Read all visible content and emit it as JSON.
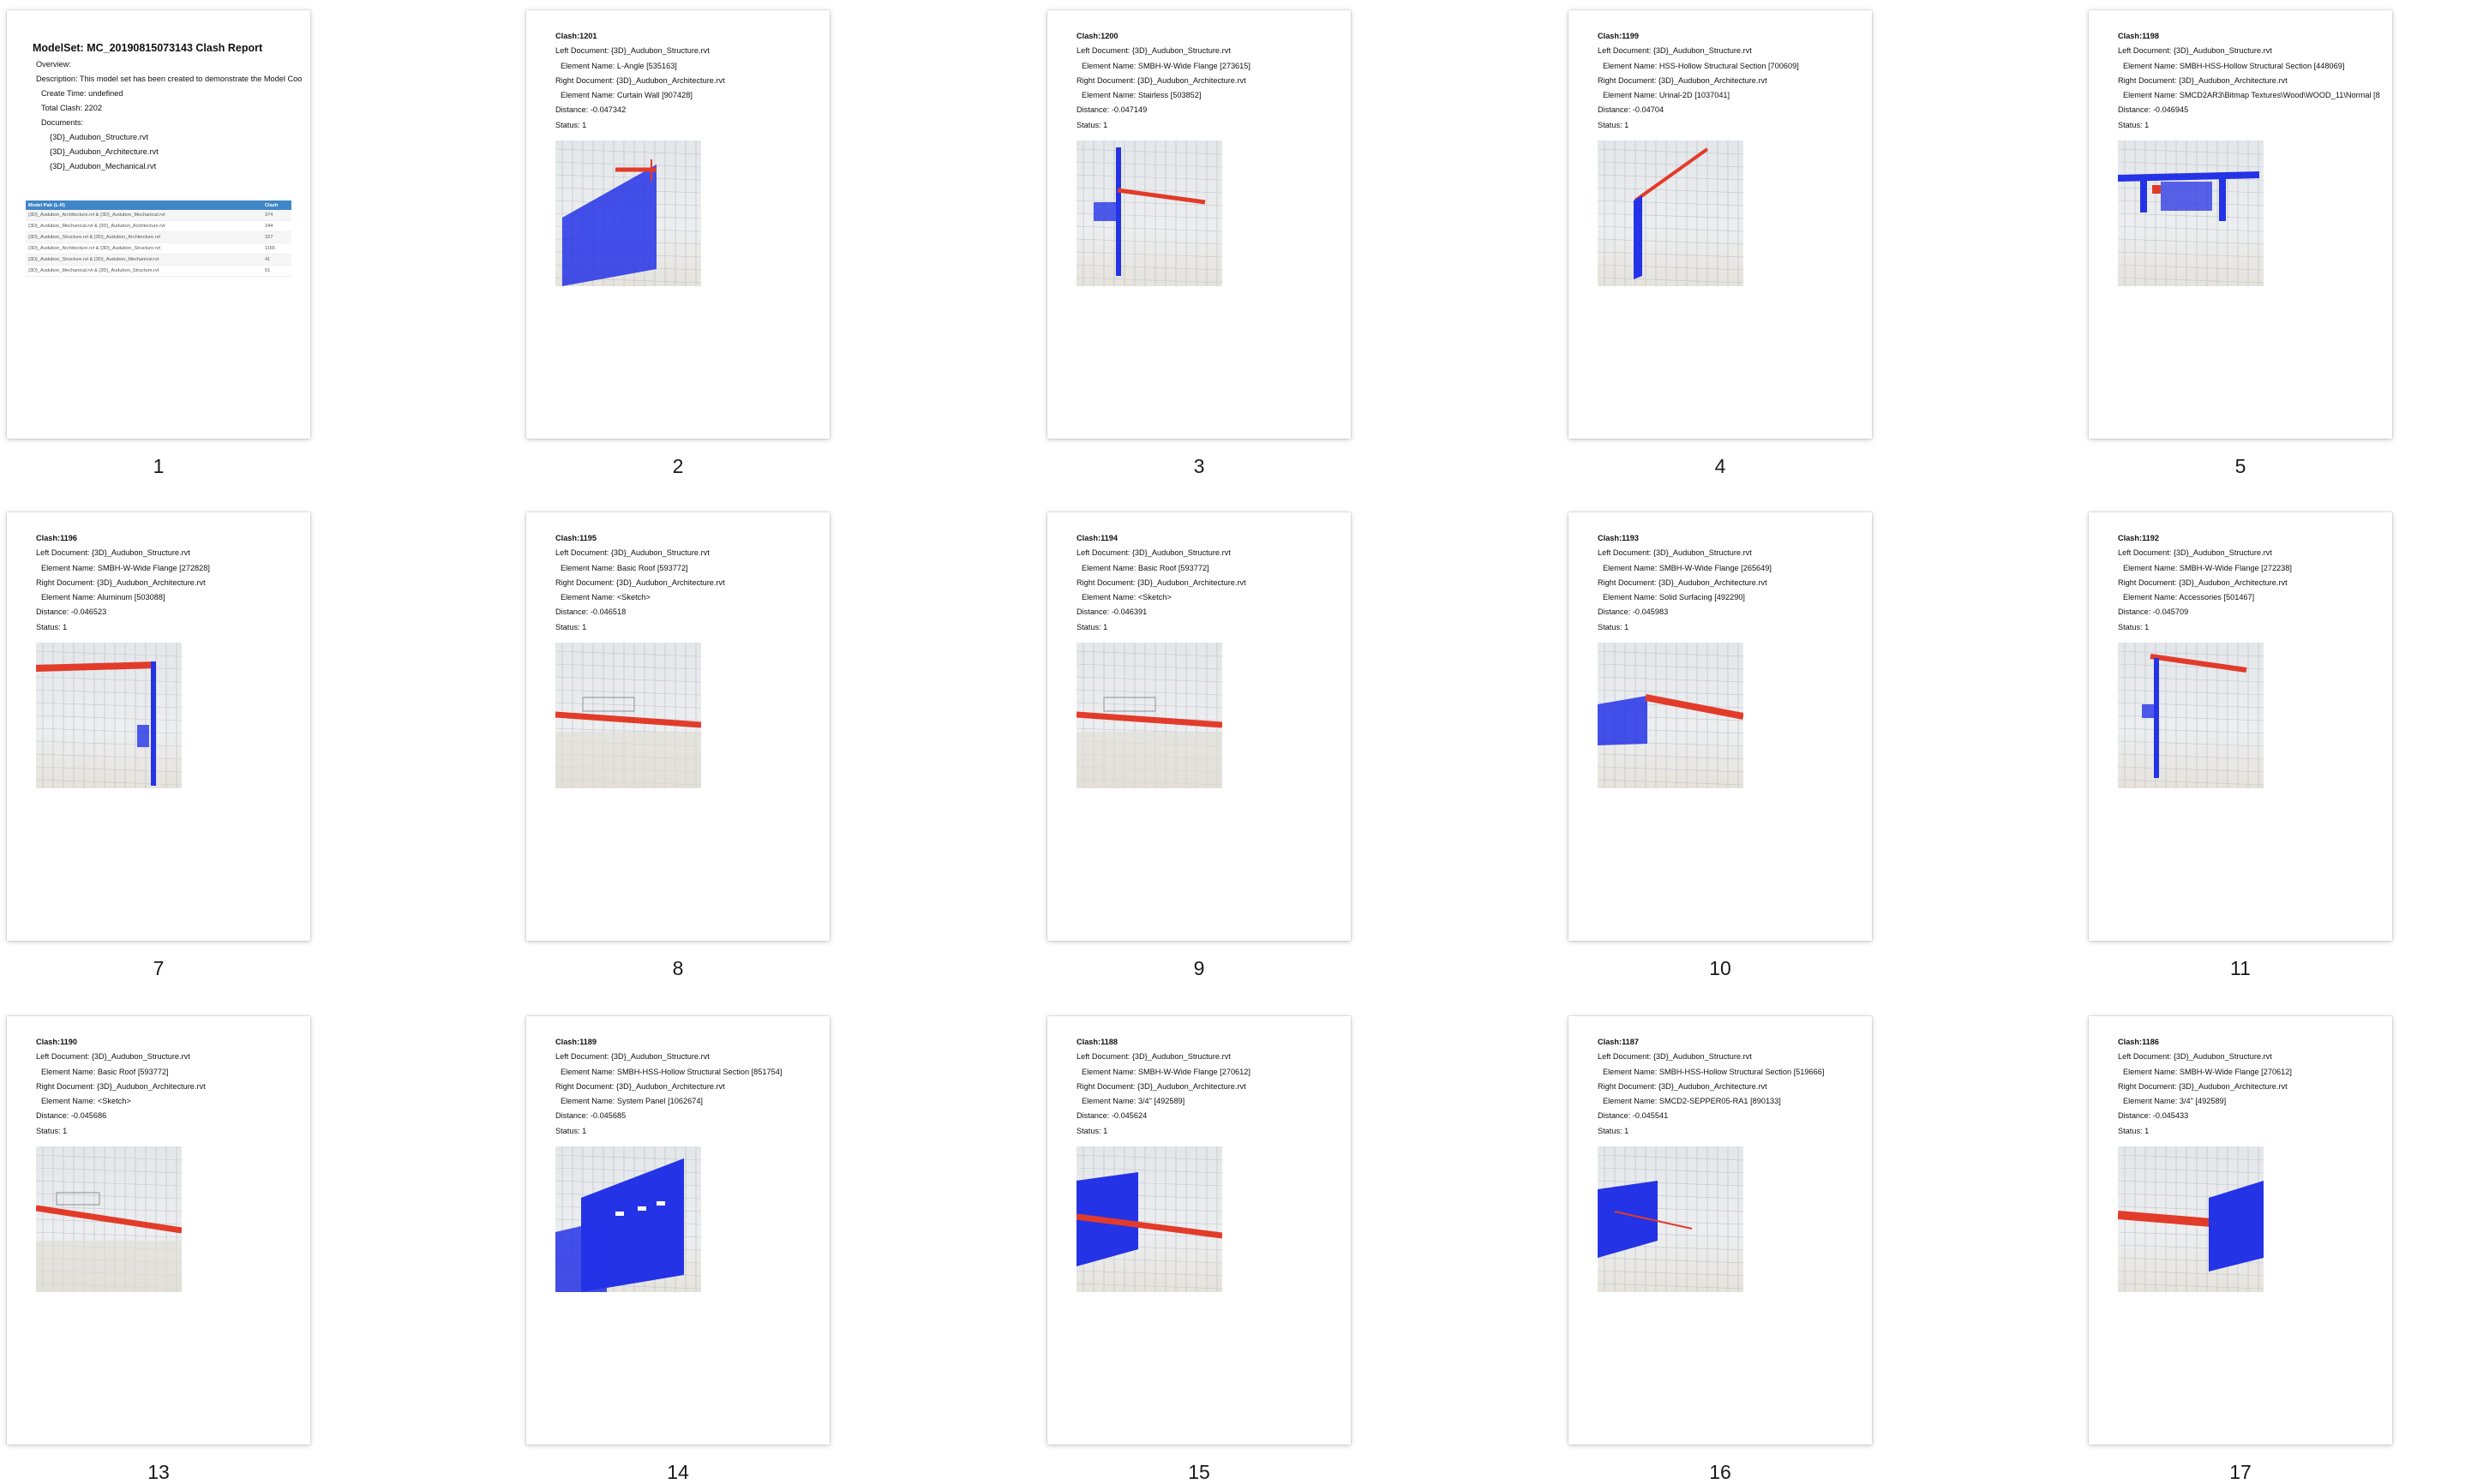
{
  "pages": [
    {
      "num": "1",
      "kind": "cover",
      "cover": {
        "title": "ModelSet: MC_20190815073143 Clash Report",
        "overview": "Overview:",
        "description": "Description: This model set has been created to demonstrate the Model Coo",
        "create_time": "Create Time: undefined",
        "total_clash": "Total Clash: 2202",
        "documents_label": "Documents:",
        "documents": [
          "{3D}_Audubon_Structure.rvt",
          "{3D}_Audubon_Architecture.rvt",
          "{3D}_Audubon_Mechanical.rvt"
        ],
        "table_headers": [
          "Model Pair (L-R)",
          "Clash"
        ],
        "rows": [
          [
            "{3D}_Audubon_Architecture.rvt & {3D}_Audubon_Mechanical.rvt",
            "374"
          ],
          [
            "{3D}_Audubon_Mechanical.rvt & {3D}_Audubon_Architecture.rvt",
            "244"
          ],
          [
            "{3D}_Audubon_Structure.rvt & {3D}_Audubon_Architecture.rvt",
            "327"
          ],
          [
            "{3D}_Audubon_Architecture.rvt & {3D}_Audubon_Structure.rvt",
            "1165"
          ],
          [
            "{3D}_Audubon_Structure.rvt & {3D}_Audubon_Mechanical.rvt",
            "41"
          ],
          [
            "{3D}_Audubon_Mechanical.rvt & {3D}_Audubon_Structure.rvt",
            "51"
          ]
        ]
      }
    },
    {
      "num": "2",
      "kind": "clash",
      "scene": "wall-left",
      "lines": [
        "Clash:1201",
        "Left Document: {3D}_Audubon_Structure.rvt",
        "Element Name: L-Angle [535163]",
        "Right Document: {3D}_Audubon_Architecture.rvt",
        "Element Name: Curtain Wall [907428]",
        "Distance: -0.047342",
        "Status: 1"
      ]
    },
    {
      "num": "3",
      "kind": "clash",
      "scene": "column-beam",
      "lines": [
        "Clash:1200",
        "Left Document: {3D}_Audubon_Structure.rvt",
        "Element Name: SMBH-W-Wide Flange [273615]",
        "Right Document: {3D}_Audubon_Architecture.rvt",
        "Element Name: Stairless [503852]",
        "Distance: -0.047149",
        "Status: 1"
      ]
    },
    {
      "num": "4",
      "kind": "clash",
      "scene": "column-diagonal",
      "lines": [
        "Clash:1199",
        "Left Document: {3D}_Audubon_Structure.rvt",
        "Element Name: HSS-Hollow Structural Section [700609]",
        "Right Document: {3D}_Audubon_Architecture.rvt",
        "Element Name: Urinal-2D [1037041]",
        "Distance: -0.04704",
        "Status: 1"
      ]
    },
    {
      "num": "5",
      "kind": "clash",
      "scene": "frame",
      "lines": [
        "Clash:1198",
        "Left Document: {3D}_Audubon_Structure.rvt",
        "Element Name: SMBH-HSS-Hollow Structural Section [448069]",
        "Right Document: {3D}_Audubon_Architecture.rvt",
        "Element Name: SMCD2AR3\\Bitmap Textures\\Wood\\WOOD_11\\Normal [8",
        "Distance: -0.046945",
        "Status: 1"
      ]
    },
    {
      "num": "7",
      "kind": "clash",
      "scene": "beam-column-right",
      "lines": [
        "Clash:1196",
        "Left Document: {3D}_Audubon_Structure.rvt",
        "Element Name: SMBH-W-Wide Flange [272828]",
        "Right Document: {3D}_Audubon_Architecture.rvt",
        "Element Name: Aluminum [503088]",
        "Distance: -0.046523",
        "Status: 1"
      ]
    },
    {
      "num": "8",
      "kind": "clash",
      "scene": "roof-line",
      "lines": [
        "Clash:1195",
        "Left Document: {3D}_Audubon_Structure.rvt",
        "Element Name: Basic Roof [593772]",
        "Right Document: {3D}_Audubon_Architecture.rvt",
        "Element Name: <Sketch>",
        "Distance: -0.046518",
        "Status: 1"
      ]
    },
    {
      "num": "9",
      "kind": "clash",
      "scene": "roof-line",
      "lines": [
        "Clash:1194",
        "Left Document: {3D}_Audubon_Structure.rvt",
        "Element Name: Basic Roof [593772]",
        "Right Document: {3D}_Audubon_Architecture.rvt",
        "Element Name: <Sketch>",
        "Distance: -0.046391",
        "Status: 1"
      ]
    },
    {
      "num": "10",
      "kind": "clash",
      "scene": "wall-beam",
      "lines": [
        "Clash:1193",
        "Left Document: {3D}_Audubon_Structure.rvt",
        "Element Name: SMBH-W-Wide Flange [265649]",
        "Right Document: {3D}_Audubon_Architecture.rvt",
        "Element Name: Solid Surfacing [492290]",
        "Distance: -0.045983",
        "Status: 1"
      ]
    },
    {
      "num": "11",
      "kind": "clash",
      "scene": "column-beam2",
      "lines": [
        "Clash:1192",
        "Left Document: {3D}_Audubon_Structure.rvt",
        "Element Name: SMBH-W-Wide Flange [272238]",
        "Right Document: {3D}_Audubon_Architecture.rvt",
        "Element Name: Accessories [501467]",
        "Distance: -0.045709",
        "Status: 1"
      ]
    },
    {
      "num": "13",
      "kind": "clash",
      "scene": "roof-line2",
      "lines": [
        "Clash:1190",
        "Left Document: {3D}_Audubon_Structure.rvt",
        "Element Name: Basic Roof [593772]",
        "Right Document: {3D}_Audubon_Architecture.rvt",
        "Element Name: <Sketch>",
        "Distance: -0.045686",
        "Status: 1"
      ]
    },
    {
      "num": "14",
      "kind": "clash",
      "scene": "panels",
      "lines": [
        "Clash:1189",
        "Left Document: {3D}_Audubon_Structure.rvt",
        "Element Name: SMBH-HSS-Hollow Structural Section [851754]",
        "Right Document: {3D}_Audubon_Architecture.rvt",
        "Element Name: System Panel [1062674]",
        "Distance: -0.045685",
        "Status: 1"
      ]
    },
    {
      "num": "15",
      "kind": "clash",
      "scene": "wall-beam2",
      "lines": [
        "Clash:1188",
        "Left Document: {3D}_Audubon_Structure.rvt",
        "Element Name: SMBH-W-Wide Flange [270612]",
        "Right Document: {3D}_Audubon_Architecture.rvt",
        "Element Name: 3/4\" [492589]",
        "Distance: -0.045624",
        "Status: 1"
      ]
    },
    {
      "num": "16",
      "kind": "clash",
      "scene": "wall-beam3",
      "lines": [
        "Clash:1187",
        "Left Document: {3D}_Audubon_Structure.rvt",
        "Element Name: SMBH-HSS-Hollow Structural Section [519666]",
        "Right Document: {3D}_Audubon_Architecture.rvt",
        "Element Name: SMCD2-SEPPER05-RA1 [890133]",
        "Distance: -0.045541",
        "Status: 1"
      ]
    },
    {
      "num": "17",
      "kind": "clash",
      "scene": "beam-wall-right",
      "lines": [
        "Clash:1186",
        "Left Document: {3D}_Audubon_Structure.rvt",
        "Element Name: SMBH-W-Wide Flange [270612]",
        "Right Document: {3D}_Audubon_Architecture.rvt",
        "Element Name: 3/4\" [492589]",
        "Distance: -0.045433",
        "Status: 1"
      ]
    }
  ],
  "colors": {
    "clash_red": "#e23b2a",
    "clash_blue": "#2433e6",
    "table_header": "#3f86c6"
  }
}
